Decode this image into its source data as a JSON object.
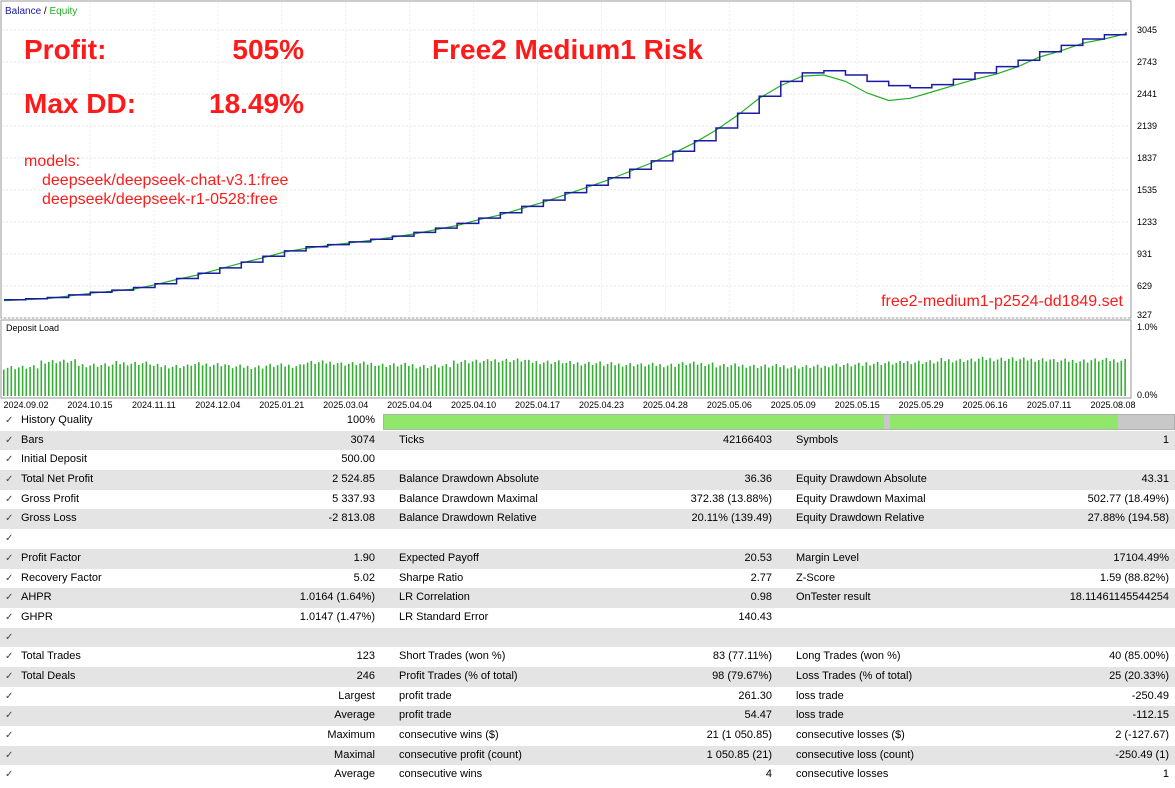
{
  "legend": {
    "balance": "Balance",
    "sep": " / ",
    "equity": "Equity"
  },
  "overlay": {
    "profit_label": "Profit:",
    "profit_value": "505%",
    "dd_label": "Max DD:",
    "dd_value": "18.49%",
    "headline": "Free2 Medium1 Risk",
    "models_label": "models:",
    "models": [
      "deepseek/deepseek-chat-v3.1:free",
      "deepseek/deepseek-r1-0528:free"
    ],
    "setfile": "free2-medium1-p2524-dd1849.set"
  },
  "colors": {
    "balance": "#1a1aa6",
    "equity": "#22b022",
    "overlay": "#ff1a1a",
    "load": "#33b033",
    "quality": "#8fe86a"
  },
  "chart_data": {
    "type": "line",
    "y_ticks": [
      "3045",
      "2743",
      "2441",
      "2139",
      "1837",
      "1535",
      "1233",
      "931",
      "629",
      "327"
    ],
    "y_tick_values": [
      3045,
      2743,
      2441,
      2139,
      1837,
      1535,
      1233,
      931,
      629,
      327
    ],
    "ylim": [
      327,
      3045
    ],
    "x_labels": [
      "2024.09.02",
      "2024.10.15",
      "2024.11.11",
      "2024.12.04",
      "2025.01.21",
      "2025.03.04",
      "2025.04.04",
      "2025.04.10",
      "2025.04.17",
      "2025.04.23",
      "2025.04.28",
      "2025.05.06",
      "2025.05.09",
      "2025.05.15",
      "2025.05.29",
      "2025.06.16",
      "2025.07.11",
      "2025.08.08"
    ],
    "series": [
      {
        "name": "Balance",
        "values": [
          500,
          508,
          520,
          545,
          570,
          590,
          615,
          650,
          700,
          750,
          800,
          855,
          910,
          960,
          1000,
          1020,
          1045,
          1070,
          1100,
          1135,
          1175,
          1220,
          1270,
          1320,
          1380,
          1440,
          1510,
          1580,
          1650,
          1730,
          1810,
          1900,
          2000,
          2120,
          2260,
          2420,
          2560,
          2640,
          2660,
          2620,
          2560,
          2520,
          2500,
          2530,
          2580,
          2640,
          2700,
          2760,
          2840,
          2900,
          2960,
          3000,
          3024
        ]
      },
      {
        "name": "Equity",
        "values": [
          490,
          500,
          510,
          535,
          560,
          580,
          600,
          640,
          690,
          735,
          790,
          845,
          895,
          950,
          985,
          1010,
          1035,
          1060,
          1090,
          1120,
          1160,
          1200,
          1255,
          1300,
          1360,
          1420,
          1490,
          1560,
          1630,
          1710,
          1790,
          1880,
          1980,
          2100,
          2240,
          2400,
          2520,
          2610,
          2620,
          2560,
          2450,
          2380,
          2400,
          2460,
          2520,
          2580,
          2630,
          2700,
          2790,
          2850,
          2920,
          2960,
          3010
        ]
      }
    ]
  },
  "deposit_load": {
    "title": "Deposit Load",
    "ticks": [
      "1.0%",
      "0.0%"
    ],
    "levels": [
      0.48,
      0.58,
      0.52,
      0.55,
      0.5,
      0.53,
      0.49,
      0.51,
      0.56,
      0.54,
      0.52,
      0.5,
      0.58,
      0.6,
      0.57,
      0.55,
      0.53,
      0.52,
      0.54,
      0.51,
      0.5,
      0.49,
      0.52,
      0.55,
      0.57,
      0.6,
      0.62,
      0.61,
      0.59,
      0.6
    ]
  },
  "report": {
    "quality": {
      "label": "History Quality",
      "value": "100%"
    },
    "rows": [
      {
        "l1": "Bars",
        "v1": "3074",
        "l2": "Ticks",
        "v2": "42166403",
        "l3": "Symbols",
        "v3": "1"
      },
      {
        "l1": "Initial Deposit",
        "v1": "500.00",
        "l2": "",
        "v2": "",
        "l3": "",
        "v3": ""
      },
      {
        "l1": "Total Net Profit",
        "v1": "2 524.85",
        "l2": "Balance Drawdown Absolute",
        "v2": "36.36",
        "l3": "Equity Drawdown Absolute",
        "v3": "43.31"
      },
      {
        "l1": "Gross Profit",
        "v1": "5 337.93",
        "l2": "Balance Drawdown Maximal",
        "v2": "372.38 (13.88%)",
        "l3": "Equity Drawdown Maximal",
        "v3": "502.77 (18.49%)"
      },
      {
        "l1": "Gross Loss",
        "v1": "-2 813.08",
        "l2": "Balance Drawdown Relative",
        "v2": "20.11% (139.49)",
        "l3": "Equity Drawdown Relative",
        "v3": "27.88% (194.58)"
      },
      {
        "l1": "",
        "v1": "",
        "l2": "",
        "v2": "",
        "l3": "",
        "v3": ""
      },
      {
        "l1": "Profit Factor",
        "v1": "1.90",
        "l2": "Expected Payoff",
        "v2": "20.53",
        "l3": "Margin Level",
        "v3": "17104.49%"
      },
      {
        "l1": "Recovery Factor",
        "v1": "5.02",
        "l2": "Sharpe Ratio",
        "v2": "2.77",
        "l3": "Z-Score",
        "v3": "1.59 (88.82%)"
      },
      {
        "l1": "AHPR",
        "v1": "1.0164 (1.64%)",
        "l2": "LR Correlation",
        "v2": "0.98",
        "l3": "OnTester result",
        "v3": "18.11461145544254"
      },
      {
        "l1": "GHPR",
        "v1": "1.0147 (1.47%)",
        "l2": "LR Standard Error",
        "v2": "140.43",
        "l3": "",
        "v3": ""
      },
      {
        "l1": "",
        "v1": "",
        "l2": "",
        "v2": "",
        "l3": "",
        "v3": ""
      },
      {
        "l1": "Total Trades",
        "v1": "123",
        "l2": "Short Trades (won %)",
        "v2": "83 (77.11%)",
        "l3": "Long Trades (won %)",
        "v3": "40 (85.00%)"
      },
      {
        "l1": "Total Deals",
        "v1": "246",
        "l2": "Profit Trades (% of total)",
        "v2": "98 (79.67%)",
        "l3": "Loss Trades (% of total)",
        "v3": "25 (20.33%)"
      },
      {
        "l1": "",
        "v1": "Largest",
        "l2": "profit trade",
        "v2": "261.30",
        "l3": "loss trade",
        "v3": "-250.49"
      },
      {
        "l1": "",
        "v1": "Average",
        "l2": "profit trade",
        "v2": "54.47",
        "l3": "loss trade",
        "v3": "-112.15"
      },
      {
        "l1": "",
        "v1": "Maximum",
        "l2": "consecutive wins ($)",
        "v2": "21 (1 050.85)",
        "l3": "consecutive losses ($)",
        "v3": "2 (-127.67)"
      },
      {
        "l1": "",
        "v1": "Maximal",
        "l2": "consecutive profit (count)",
        "v2": "1 050.85 (21)",
        "l3": "consecutive loss (count)",
        "v3": "-250.49 (1)"
      },
      {
        "l1": "",
        "v1": "Average",
        "l2": "consecutive wins",
        "v2": "4",
        "l3": "consecutive losses",
        "v3": "1"
      }
    ]
  }
}
